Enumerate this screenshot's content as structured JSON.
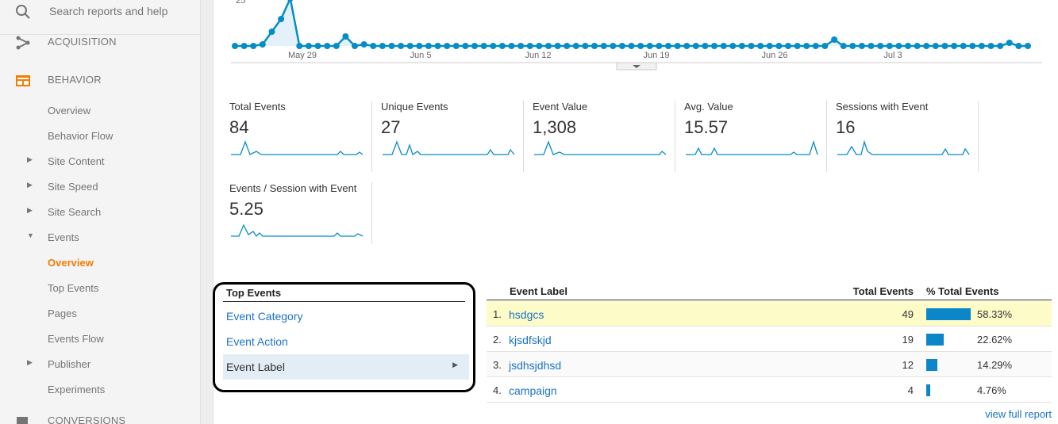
{
  "sidebar": {
    "search_placeholder": "Search reports and help",
    "acquisition": "ACQUISITION",
    "behavior": "BEHAVIOR",
    "conversions": "CONVERSIONS",
    "items": [
      {
        "label": "Overview"
      },
      {
        "label": "Behavior Flow"
      },
      {
        "label": "Site Content"
      },
      {
        "label": "Site Speed"
      },
      {
        "label": "Site Search"
      },
      {
        "label": "Events"
      },
      {
        "label": "Overview"
      },
      {
        "label": "Top Events"
      },
      {
        "label": "Pages"
      },
      {
        "label": "Events Flow"
      },
      {
        "label": "Publisher"
      },
      {
        "label": "Experiments"
      }
    ]
  },
  "chart_data": {
    "type": "line",
    "y_top_label": "25",
    "x_tick_labels": [
      "May 29",
      "Jun 5",
      "Jun 12",
      "Jun 19",
      "Jun 26",
      "Jul 3"
    ],
    "ylim": [
      0,
      25
    ],
    "values": [
      0,
      0,
      0,
      1,
      9,
      17,
      30,
      0,
      0,
      0,
      0,
      0,
      6,
      0,
      1,
      0,
      0,
      0,
      0,
      0,
      0,
      0,
      0,
      0,
      0,
      0,
      0,
      0,
      0,
      0,
      0,
      0,
      0,
      0,
      0,
      0,
      0,
      0,
      0,
      0,
      0,
      0,
      0,
      0,
      0,
      0,
      0,
      0,
      0,
      0,
      0,
      0,
      0,
      0,
      0,
      0,
      0,
      0,
      0,
      0,
      0,
      0,
      0,
      0,
      0,
      4,
      0,
      0,
      0,
      0,
      0,
      0,
      0,
      0,
      0,
      0,
      0,
      0,
      0,
      0,
      0,
      0,
      0,
      0,
      2,
      0,
      0
    ],
    "color": "#058dc7"
  },
  "scorecards": [
    {
      "title": "Total Events",
      "value": "84"
    },
    {
      "title": "Unique Events",
      "value": "27"
    },
    {
      "title": "Event Value",
      "value": "1,308"
    },
    {
      "title": "Avg. Value",
      "value": "15.57"
    },
    {
      "title": "Sessions with Event",
      "value": "16"
    },
    {
      "title": "Events / Session with Event",
      "value": "5.25"
    }
  ],
  "top_events": {
    "header": "Top Events",
    "items": [
      "Event Category",
      "Event Action",
      "Event Label"
    ]
  },
  "table": {
    "col_label": "Event Label",
    "col_total": "Total Events",
    "col_pct": "% Total Events",
    "rows": [
      {
        "n": "1.",
        "label": "hsdgcs",
        "count": "49",
        "pct": "58.33%",
        "share": 0.5833
      },
      {
        "n": "2.",
        "label": "kjsdfskjd",
        "count": "19",
        "pct": "22.62%",
        "share": 0.2262
      },
      {
        "n": "3.",
        "label": "jsdhsjdhsd",
        "count": "12",
        "pct": "14.29%",
        "share": 0.1429
      },
      {
        "n": "4.",
        "label": "campaign",
        "count": "4",
        "pct": "4.76%",
        "share": 0.0476
      }
    ],
    "view_full": "view full report"
  }
}
